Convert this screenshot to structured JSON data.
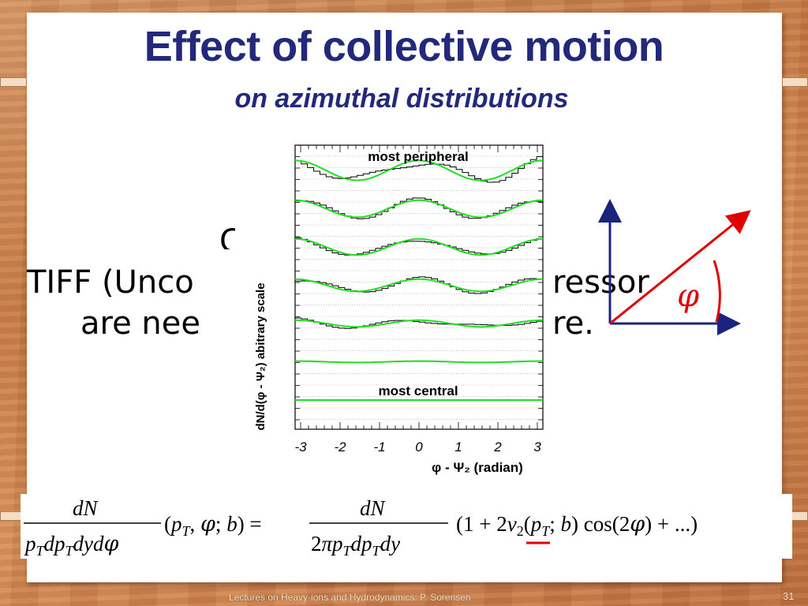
{
  "slide": {
    "title": "Effect of collective motion",
    "subtitle": "on azimuthal distributions",
    "footer": "Lectures on Heavy-ions and Hydrodynamics: P. Sorensen",
    "page_number": "31"
  },
  "placeholder": {
    "fragment1": "TIFF (Unco",
    "fragment2": "ressor",
    "fragment3": "are nee",
    "fragment4": "re."
  },
  "angle_diagram": {
    "symbol": "φ",
    "vector_color": "#e00000",
    "axis_color": "#1a237e"
  },
  "chart_data": {
    "type": "line",
    "title": "",
    "xlabel": "φ - Ψ₂ (radian)",
    "ylabel": "dN/d(φ - Ψ₂) abitrary scale",
    "xlim": [
      -3.14,
      3.14
    ],
    "xticks": [
      "-3",
      "-2",
      "-1",
      "0",
      "1",
      "2",
      "3"
    ],
    "xtick_values": [
      -3,
      -2,
      -1,
      0,
      1,
      2,
      3
    ],
    "yscale": "arbitrary (offset curves)",
    "annotations": [
      "most peripheral",
      "most central"
    ],
    "series": [
      {
        "baseline": 0.0,
        "v2": 0.42,
        "histogram": true
      },
      {
        "baseline": 1.0,
        "v2": 0.36,
        "histogram": true
      },
      {
        "baseline": 2.0,
        "v2": 0.34,
        "histogram": true
      },
      {
        "baseline": 3.0,
        "v2": 0.26,
        "histogram": true
      },
      {
        "baseline": 4.0,
        "v2": 0.14,
        "histogram": true
      },
      {
        "baseline": 5.0,
        "v2": 0.03,
        "histogram": false
      },
      {
        "baseline": 6.0,
        "v2": 0.0,
        "histogram": false
      }
    ],
    "fit_color": "#22dd22",
    "hist_color": "#000000"
  },
  "formula": {
    "lhs_num": "dN",
    "lhs_den": "p",
    "lhs_args": "(p",
    "rhs_num": "dN",
    "rhs_den": "2πp",
    "expansion": "(1 + 2v"
  }
}
